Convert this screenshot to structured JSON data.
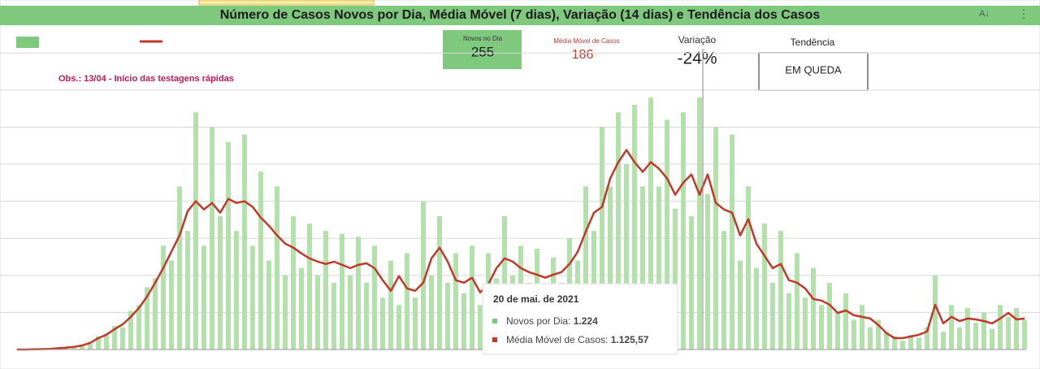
{
  "header": {
    "title": "Número de Casos Novos por Dia, Média Móvel (7 dias), Variação (14 dias) e Tendência dos Casos"
  },
  "scorecards": {
    "novos": {
      "label": "Novos no Dia",
      "value": 255
    },
    "media": {
      "label": "Média Móvel de Casos",
      "value": 186
    },
    "variacao": {
      "label": "Variação",
      "value": "-24%"
    },
    "tendencia": {
      "label": "Tendência",
      "value": "EM QUEDA"
    }
  },
  "note": "Obs.: 13/04 - Início das testagens rápidas",
  "tooltip": {
    "date": "20 de mai. de 2021",
    "rows": [
      {
        "label": "Novos por Dia:",
        "value": "1.224"
      },
      {
        "label": "Média Móvel de Casos:",
        "value": "1.125,57"
      }
    ]
  },
  "chart_data": {
    "type": "bar-line",
    "categories": [
      null,
      null,
      null,
      null,
      null,
      null,
      null,
      null,
      null,
      null,
      null,
      null,
      null,
      null,
      null,
      null,
      null,
      null,
      null,
      null,
      null,
      null,
      null,
      null,
      null,
      null,
      null,
      null,
      null,
      null,
      null,
      null,
      null,
      null,
      null,
      null,
      null,
      null,
      null,
      null,
      null,
      null,
      null,
      null,
      null,
      null,
      null,
      null,
      null,
      null,
      null,
      null,
      null,
      null,
      null,
      null,
      null,
      null,
      null,
      null,
      null,
      null,
      null,
      null,
      null,
      null,
      null,
      null,
      null,
      null,
      null,
      null,
      null,
      null,
      null,
      null,
      null,
      null,
      null,
      null,
      null,
      null,
      null,
      null,
      null,
      null,
      null,
      null,
      null,
      null,
      null,
      null,
      null,
      null,
      null,
      null,
      null,
      null,
      null,
      null,
      null,
      null,
      null,
      null,
      null,
      null,
      null,
      null,
      null,
      null,
      null,
      null,
      null,
      null,
      null,
      null,
      null,
      null,
      null,
      null,
      null,
      null,
      null,
      null,
      null
    ],
    "series": [
      {
        "kind": "bar",
        "color": "#b4e0ac",
        "values": [
          0,
          0,
          2,
          3,
          6,
          10,
          14,
          22,
          35,
          40,
          90,
          95,
          160,
          150,
          260,
          300,
          420,
          480,
          700,
          600,
          1100,
          800,
          1600,
          700,
          1500,
          900,
          1400,
          800,
          1450,
          700,
          1200,
          600,
          1100,
          500,
          900,
          550,
          850,
          500,
          800,
          450,
          780,
          500,
          760,
          450,
          700,
          350,
          600,
          300,
          650,
          350,
          1000,
          500,
          900,
          450,
          650,
          380,
          700,
          300,
          650,
          480,
          900,
          500,
          700,
          450,
          680,
          400,
          620,
          450,
          750,
          600,
          1100,
          800,
          1500,
          1100,
          1600,
          1250,
          1650,
          1100,
          1700,
          1100,
          1550,
          950,
          1600,
          900,
          1700,
          1050,
          1500,
          800,
          1450,
          600,
          1100,
          550,
          850,
          450,
          800,
          380,
          650,
          350,
          550,
          300,
          450,
          250,
          380,
          200,
          300,
          150,
          200,
          120,
          90,
          60,
          100,
          80,
          150,
          500,
          120,
          300,
          150,
          280,
          180,
          250,
          140,
          300,
          220,
          280,
          200
        ]
      },
      {
        "kind": "line",
        "color": "#c0392b",
        "values": [
          0,
          0,
          1,
          2,
          4,
          8,
          12,
          18,
          27,
          45,
          77,
          100,
          137,
          170,
          220,
          280,
          357,
          450,
          550,
          660,
          770,
          934,
          1000,
          945,
          989,
          923,
          1016,
          989,
          1000,
          962,
          890,
          835,
          770,
          714,
          687,
          648,
          615,
          593,
          577,
          593,
          571,
          549,
          571,
          582,
          549,
          467,
          396,
          495,
          412,
          396,
          451,
          615,
          687,
          593,
          467,
          451,
          484,
          385,
          440,
          549,
          615,
          593,
          549,
          522,
          505,
          484,
          505,
          522,
          577,
          659,
          797,
          923,
          962,
          1154,
          1264,
          1346,
          1264,
          1198,
          1264,
          1220,
          1154,
          1044,
          1126,
          1181,
          1044,
          1181,
          989,
          945,
          923,
          770,
          879,
          714,
          632,
          549,
          577,
          467,
          451,
          412,
          341,
          330,
          302,
          247,
          264,
          231,
          220,
          209,
          165,
          110,
          77,
          77,
          88,
          99,
          121,
          302,
          176,
          220,
          192,
          209,
          203,
          192,
          176,
          209,
          247,
          203,
          209
        ]
      }
    ],
    "ylim": [
      0,
      2040
    ],
    "gridlines": [
      250,
      500,
      750,
      1000,
      1250,
      1500,
      1750,
      2000
    ],
    "grid": true
  }
}
